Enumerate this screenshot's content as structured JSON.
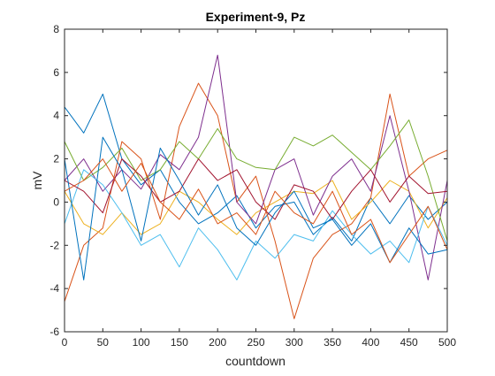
{
  "chart_data": {
    "type": "line",
    "title": "Experiment-9, Pz",
    "xlabel": "countdown",
    "ylabel": "mV",
    "xlim": [
      0,
      500
    ],
    "ylim": [
      -6,
      8
    ],
    "xticks": [
      0,
      50,
      100,
      150,
      200,
      250,
      300,
      350,
      400,
      450,
      500
    ],
    "yticks": [
      -6,
      -4,
      -2,
      0,
      2,
      4,
      6,
      8
    ],
    "grid": false,
    "legend": "none",
    "x": [
      0,
      25,
      50,
      75,
      100,
      125,
      150,
      175,
      200,
      225,
      250,
      275,
      300,
      325,
      350,
      375,
      400,
      425,
      450,
      475,
      500
    ],
    "series": [
      {
        "color": "#0072BD",
        "values": [
          4.4,
          3.2,
          5.0,
          2.0,
          0.8,
          1.5,
          0.0,
          -1.0,
          -0.5,
          0.3,
          -1.2,
          -0.2,
          0.0,
          -1.5,
          -0.7,
          -1.8,
          0.2,
          -1.0,
          0.3,
          -0.8,
          0.0
        ]
      },
      {
        "color": "#D95319",
        "values": [
          -4.6,
          -2.0,
          -1.2,
          2.8,
          2.0,
          -0.8,
          3.5,
          5.5,
          4.0,
          0.0,
          1.2,
          -1.8,
          -5.4,
          -2.6,
          -1.5,
          -1.0,
          0.2,
          5.0,
          1.2,
          2.0,
          2.4
        ]
      },
      {
        "color": "#EDB120",
        "values": [
          0.5,
          -1.0,
          -1.5,
          -0.5,
          -1.5,
          -1.0,
          0.5,
          0.0,
          -0.8,
          -1.5,
          -0.5,
          0.0,
          0.5,
          0.4,
          1.0,
          -0.8,
          0.0,
          1.0,
          0.5,
          -1.2,
          0.2
        ]
      },
      {
        "color": "#7E2F8E",
        "values": [
          1.0,
          2.0,
          0.5,
          1.5,
          0.6,
          2.2,
          1.5,
          3.0,
          6.8,
          0.0,
          -1.0,
          1.5,
          2.0,
          -0.6,
          1.2,
          2.0,
          0.5,
          4.0,
          0.5,
          -3.6,
          1.0
        ]
      },
      {
        "color": "#77AC30",
        "values": [
          2.8,
          1.0,
          1.6,
          2.5,
          1.0,
          1.5,
          2.8,
          2.0,
          3.4,
          2.0,
          1.6,
          1.5,
          3.0,
          2.6,
          3.1,
          2.3,
          1.5,
          2.6,
          3.8,
          1.2,
          -1.8
        ]
      },
      {
        "color": "#4DBEEE",
        "values": [
          -1.0,
          1.5,
          0.8,
          -0.5,
          -2.0,
          -1.5,
          -3.0,
          -1.2,
          -2.2,
          -3.6,
          -1.8,
          -2.6,
          -1.5,
          -1.8,
          -0.4,
          -1.5,
          -2.4,
          -1.8,
          -2.8,
          -0.2,
          -2.0
        ]
      },
      {
        "color": "#A2142F",
        "values": [
          1.0,
          0.5,
          -0.5,
          2.0,
          1.2,
          0.0,
          0.5,
          2.0,
          1.0,
          1.5,
          0.0,
          -0.8,
          0.8,
          0.5,
          -0.8,
          0.5,
          1.5,
          0.0,
          1.2,
          0.4,
          0.5
        ]
      },
      {
        "color": "#0072BD",
        "values": [
          2.0,
          -3.6,
          3.0,
          1.5,
          -1.8,
          2.5,
          1.0,
          -0.6,
          0.8,
          -1.2,
          -2.0,
          -0.5,
          0.5,
          -1.2,
          -0.8,
          -2.0,
          -1.0,
          -2.8,
          -1.2,
          -2.4,
          -2.2
        ]
      },
      {
        "color": "#D95319",
        "values": [
          0.5,
          1.0,
          2.0,
          0.5,
          1.8,
          0.0,
          -0.8,
          0.6,
          -1.0,
          -0.5,
          -1.5,
          0.5,
          -0.5,
          -1.0,
          0.5,
          -1.5,
          -0.8,
          -2.8,
          -1.5,
          -0.2,
          -2.2
        ]
      }
    ]
  }
}
